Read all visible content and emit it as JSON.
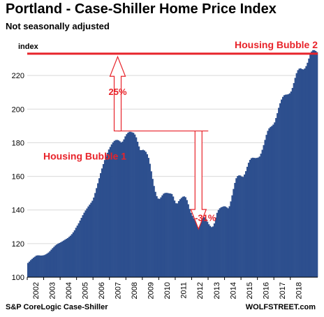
{
  "title": "Portland - Case-Shiller Home Price Index",
  "subtitle": "Not seasonally adjusted",
  "source_left": "S&P CoreLogic Case-Shiller",
  "source_right": "WOLFSTREET.com",
  "colors": {
    "bar": "#2d4f8e",
    "annotation": "#e8232a",
    "grid": "#d9d9d9",
    "axis_text": "#000000"
  },
  "chart_data": {
    "type": "bar",
    "ylabel": "index",
    "xlabel": "",
    "ylim": [
      100,
      240
    ],
    "yticks": [
      100,
      120,
      140,
      160,
      180,
      200,
      220
    ],
    "grid": "horizontal",
    "x_start": "2002-01",
    "frequency": "monthly",
    "xtick_labels": [
      "2002",
      "2003",
      "2004",
      "2005",
      "2006",
      "2007",
      "2008",
      "2009",
      "2010",
      "2011",
      "2012",
      "2013",
      "2014",
      "2015",
      "2016",
      "2017",
      "2018"
    ],
    "values": [
      108.5,
      109.3,
      110.2,
      110.9,
      111.6,
      112.2,
      112.8,
      113.0,
      113.0,
      112.9,
      112.9,
      113.0,
      113.2,
      113.6,
      114.1,
      114.7,
      115.5,
      116.4,
      117.3,
      118.1,
      118.9,
      119.5,
      120.0,
      120.4,
      120.8,
      121.3,
      121.8,
      122.3,
      122.8,
      123.3,
      124.0,
      124.7,
      125.6,
      126.7,
      127.9,
      129.4,
      130.7,
      132.1,
      133.7,
      135.3,
      136.9,
      138.4,
      139.7,
      140.9,
      142.1,
      143.2,
      144.3,
      145.5,
      147.4,
      150.1,
      153.0,
      155.9,
      158.9,
      161.9,
      164.7,
      167.3,
      169.7,
      171.9,
      174.0,
      176.0,
      177.5,
      179.0,
      180.2,
      181.1,
      181.6,
      181.7,
      181.5,
      180.9,
      180.2,
      180.7,
      182.0,
      183.8,
      185.1,
      186.0,
      186.5,
      186.5,
      186.2,
      185.9,
      184.9,
      183.2,
      180.6,
      177.8,
      175.6,
      175.6,
      175.8,
      175.4,
      174.6,
      173.2,
      171.0,
      167.5,
      163.0,
      158.5,
      154.3,
      150.8,
      148.2,
      146.8,
      146.6,
      147.5,
      148.7,
      149.7,
      150.1,
      150.2,
      150.1,
      149.9,
      149.8,
      149.5,
      148.0,
      145.6,
      144.0,
      143.9,
      145.3,
      146.4,
      147.2,
      147.9,
      148.1,
      147.6,
      145.9,
      143.4,
      140.6,
      138.3,
      136.5,
      135.0,
      133.8,
      133.2,
      133.6,
      134.6,
      135.3,
      135.7,
      135.9,
      135.6,
      134.5,
      133.0,
      131.5,
      130.5,
      129.8,
      130.2,
      132.0,
      135.5,
      138.3,
      140.0,
      141.0,
      141.6,
      141.9,
      142.2,
      142.1,
      141.6,
      141.0,
      142.2,
      145.1,
      148.7,
      152.5,
      156.1,
      158.9,
      160.2,
      160.6,
      160.5,
      159.9,
      159.7,
      161.1,
      163.1,
      165.7,
      168.1,
      169.8,
      170.8,
      171.1,
      171.0,
      170.9,
      171.0,
      171.2,
      171.8,
      173.5,
      175.8,
      178.6,
      181.7,
      184.7,
      187.1,
      188.6,
      189.4,
      190.0,
      190.8,
      192.1,
      194.7,
      197.6,
      200.8,
      203.5,
      205.7,
      207.3,
      208.3,
      208.6,
      208.7,
      208.9,
      209.4,
      210.5,
      212.6,
      215.5,
      218.6,
      221.4,
      223.2,
      224.1,
      224.3,
      223.8,
      223.6,
      224.2,
      225.6,
      227.6,
      230.1,
      232.6,
      234.3,
      235.1,
      235.1,
      234.6,
      233.9
    ],
    "annotations": [
      {
        "text": "Housing Bubble 1",
        "role": "label"
      },
      {
        "text": "Housing Bubble 2",
        "role": "label"
      },
      {
        "text": "25%",
        "role": "arrow-up",
        "from_value": 187.0,
        "to_value": 234.5
      },
      {
        "text": "-31%",
        "role": "arrow-down",
        "from_value": 187.0,
        "to_value": 129.5
      }
    ],
    "reference_lines": [
      {
        "y": 187.0,
        "style": "red-outline"
      },
      {
        "y": 233.0,
        "style": "red-solid"
      }
    ]
  }
}
